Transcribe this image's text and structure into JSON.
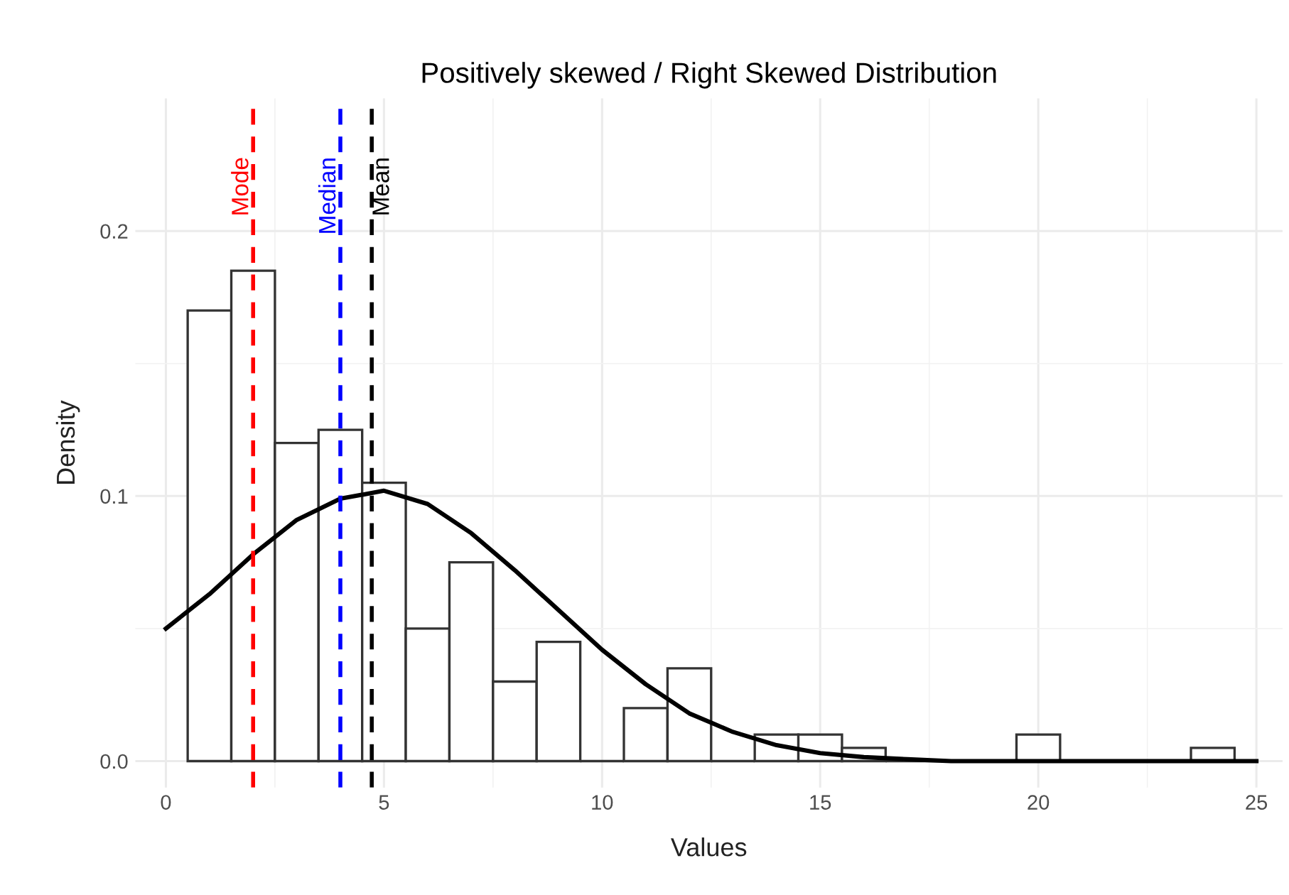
{
  "chart_data": {
    "type": "histogram",
    "title": "Positively skewed / Right Skewed Distribution",
    "xlabel": "Values",
    "ylabel": "Density",
    "bins": [
      0.5,
      1.5,
      2.5,
      3.5,
      4.5,
      5.5,
      6.5,
      7.5,
      8.5,
      9.5,
      10.5,
      11.5,
      12.5,
      13.5,
      14.5,
      15.5,
      16.5,
      17.5,
      18.5,
      19.5,
      20.5,
      21.5,
      22.5,
      23.5,
      24.5
    ],
    "values": [
      0.17,
      0.185,
      0.12,
      0.125,
      0.105,
      0.05,
      0.075,
      0.03,
      0.045,
      0,
      0.02,
      0.035,
      0,
      0.01,
      0.01,
      0.005,
      0,
      0,
      0,
      0.01,
      0,
      0,
      0,
      0.005
    ],
    "color": "#333333",
    "series": [
      {
        "type": "line",
        "color": "#000000",
        "x": [
          0,
          1,
          2,
          3,
          4,
          5,
          6,
          7,
          8,
          9,
          10,
          11,
          12,
          13,
          14,
          15,
          16,
          17,
          18,
          19,
          20,
          21,
          22,
          23,
          24,
          25
        ],
        "values": [
          0.05,
          0.063,
          0.078,
          0.091,
          0.099,
          0.102,
          0.097,
          0.086,
          0.072,
          0.057,
          0.042,
          0.029,
          0.018,
          0.011,
          0.006,
          0.003,
          0.0015,
          0.0007,
          0,
          0,
          0,
          0,
          0,
          0,
          0,
          0
        ]
      }
    ],
    "ref_lines": [
      {
        "axis": "x",
        "value": 2,
        "label": "Mode",
        "color": "#ff0000",
        "line_style": "dashed"
      },
      {
        "axis": "x",
        "value": 4,
        "label": "Median",
        "color": "#0000ff",
        "line_style": "dashed"
      },
      {
        "axis": "x",
        "value": 4.72,
        "label": "Mean",
        "color": "#000000",
        "line_style": "dashed"
      }
    ],
    "xlim": [
      -0.7,
      25.6
    ],
    "ylim": [
      -0.01,
      0.25
    ],
    "xticks": [
      0,
      5,
      10,
      15,
      20,
      25
    ],
    "yticks": [
      {
        "value": 0,
        "label": "0.0"
      },
      0.1,
      0.2
    ],
    "grid": true
  }
}
